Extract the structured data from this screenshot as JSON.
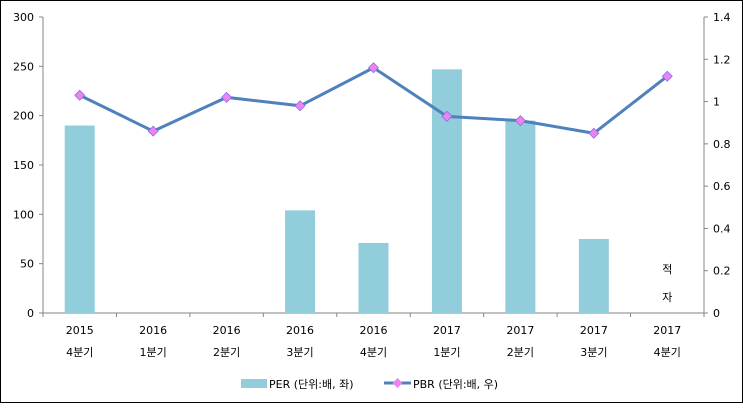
{
  "chart_data": {
    "type": "bar+line",
    "categories": [
      [
        "2015",
        "4분기"
      ],
      [
        "2016",
        "1분기"
      ],
      [
        "2016",
        "2분기"
      ],
      [
        "2016",
        "3분기"
      ],
      [
        "2016",
        "4분기"
      ],
      [
        "2017",
        "1분기"
      ],
      [
        "2017",
        "2분기"
      ],
      [
        "2017",
        "3분기"
      ],
      [
        "2017",
        "4분기"
      ]
    ],
    "series": [
      {
        "name": "PER (단위:배, 좌)",
        "type": "bar",
        "axis": "left",
        "color": "#92CDDC",
        "values": [
          190,
          null,
          null,
          104,
          71,
          247,
          195,
          75,
          null
        ]
      },
      {
        "name": "PBR (단위:배, 우)",
        "type": "line",
        "axis": "right",
        "color": "#4F81BD",
        "marker_color": "#EE82EE",
        "values": [
          1.03,
          0.86,
          1.02,
          0.98,
          1.16,
          0.93,
          0.91,
          0.85,
          1.12
        ]
      }
    ],
    "left_axis": {
      "ylim": [
        0,
        300
      ],
      "ticks": [
        "0",
        "50",
        "100",
        "150",
        "200",
        "250",
        "300"
      ]
    },
    "right_axis": {
      "ylim": [
        0,
        1.4
      ],
      "ticks": [
        "0",
        "0.2",
        "0.4",
        "0.6",
        "0.8",
        "1",
        "1.2",
        "1.4"
      ]
    },
    "annotation": [
      "적",
      "자"
    ],
    "legend": "bottom",
    "grid": false
  }
}
